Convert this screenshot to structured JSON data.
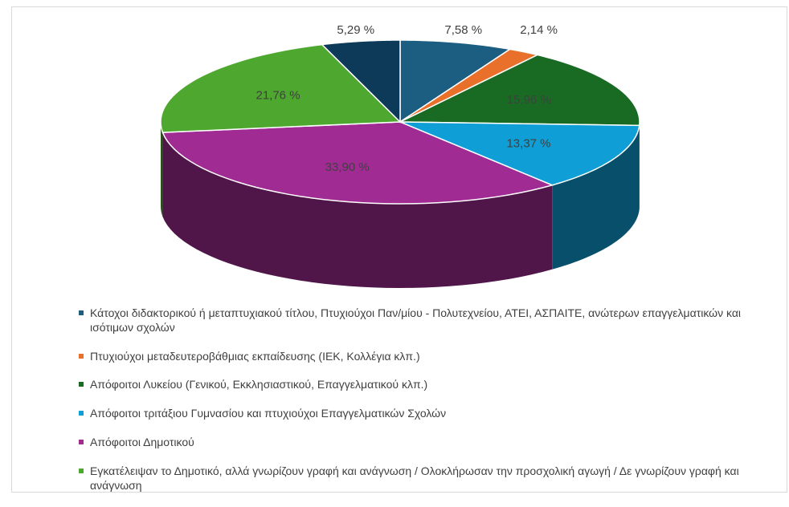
{
  "chart_data": {
    "type": "pie",
    "categories": [
      "Κάτοχοι διδακτορικού ή μεταπτυχιακού τίτλου, Πτυχιούχοι Παν/μίου - Πολυτεχνείου, ΑΤΕΙ, ΑΣΠΑΙΤΕ, ανώτερων επαγγελματικών και ισότιμων σχολών",
      "Πτυχιούχοι μεταδευτεροβάθμιας εκπαίδευσης (ΙΕΚ, Κολλέγια κλπ.)",
      "Απόφοιτοι Λυκείου (Γενικού, Εκκλησιαστικού, Επαγγελματικού κλπ.)",
      "Απόφοιτοι τριτάξιου Γυμνασίου και πτυχιούχοι Επαγγελματικών Σχολών",
      "Απόφοιτοι Δημοτικού",
      "Εγκατέλειψαν το Δημοτικό, αλλά γνωρίζουν γραφή και ανάγνωση / Ολοκλήρωσαν την προσχολική αγωγή / Δε γνωρίζουν γραφή και ανάγνωση",
      null
    ],
    "values": [
      7.58,
      2.14,
      15.96,
      13.37,
      33.9,
      21.76,
      5.29
    ],
    "value_labels": [
      "7,58 %",
      "2,14 %",
      "15,96 %",
      "13,37 %",
      "33,90 %",
      "21,76 %",
      "5,29 %"
    ],
    "colors": [
      "#1b5e82",
      "#e8702a",
      "#196b24",
      "#0f9ed5",
      "#a02b93",
      "#4ea72e",
      "#0e3a5a"
    ]
  }
}
